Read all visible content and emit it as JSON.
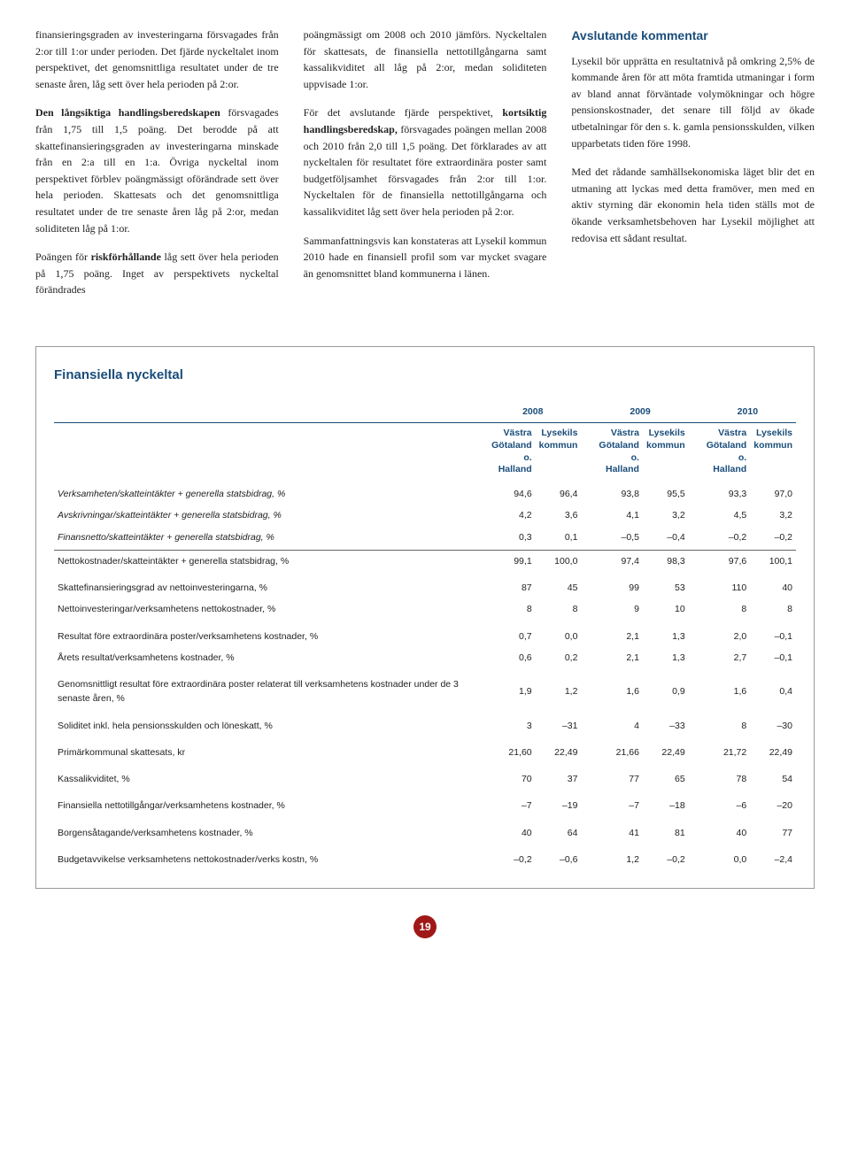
{
  "col1": {
    "p1": "finansieringsgraden av investeringarna försvagades från 2:or till 1:or under perioden. Det fjärde nyckeltalet inom perspektivet, det genomsnittliga resultatet under de tre senaste åren, låg sett över hela perioden på 2:or.",
    "p2a": "Den långsiktiga handlingsberedskapen",
    "p2b": " försvagades från 1,75 till 1,5 poäng. Det berodde på att skattefinansieringsgraden av investeringarna minskade från en 2:a till en 1:a. Övriga nyckeltal inom perspektivet förblev poängmässigt oförändrade sett över hela perioden. Skattesats och det genomsnittliga resultatet under de tre senaste åren låg på 2:or, medan soliditeten låg på 1:or.",
    "p3a": "Poängen för ",
    "p3b": "riskförhållande",
    "p3c": " låg sett över hela perioden på 1,75 poäng. Inget av perspektivets nyckeltal förändrades"
  },
  "col2": {
    "p1": "poängmässigt om 2008 och 2010 jämförs. Nyckeltalen för skattesats, de finansiella nettotillgångarna samt kassalikviditet all låg på 2:or, medan soliditeten uppvisade 1:or.",
    "p2a": "För det avslutande fjärde perspektivet, ",
    "p2b": "kortsiktig handlingsberedskap,",
    "p2c": " försvagades poängen mellan 2008 och 2010 från 2,0 till 1,5 poäng. Det förklarades av att nyckeltalen för resultatet före extraordinära poster samt budgetföljsamhet försvagades från 2:or till 1:or. Nyckeltalen för de finansiella nettotillgångarna och kassalikviditet låg sett över hela perioden på 2:or.",
    "p3": "Sammanfattningsvis kan konstateras att Lysekil kommun 2010 hade en finansiell profil som var mycket svagare än genomsnittet bland kommunerna i länen."
  },
  "col3": {
    "heading": "Avslutande kommentar",
    "p1": "Lysekil bör upprätta en resultatnivå på omkring 2,5% de kommande åren för att möta framtida utmaningar i form av bland annat förväntade volymökningar och högre pensionskostnader, det senare till följd av ökade utbetalningar för den s. k. gamla pensionsskulden, vilken upparbetats tiden före 1998.",
    "p2": "Med det rådande samhällsekonomiska läget blir det en utmaning att lyckas med detta framöver, men med en aktiv styrning där ekonomin hela tiden ställs mot de ökande verksamhetsbehoven har Lysekil möjlighet att redovisa ett sådant resultat."
  },
  "table": {
    "title": "Finansiella nyckeltal",
    "years": [
      "2008",
      "2009",
      "2010"
    ],
    "subA": "Västra Götaland o. Halland",
    "subB": "Lysekils kommun",
    "rows": [
      {
        "l": "Verksamheten/skatteintäkter + generella statsbidrag, %",
        "v": [
          "94,6",
          "96,4",
          "93,8",
          "95,5",
          "93,3",
          "97,0"
        ],
        "it": true
      },
      {
        "l": "Avskrivningar/skatteintäkter + generella statsbidrag, %",
        "v": [
          "4,2",
          "3,6",
          "4,1",
          "3,2",
          "4,5",
          "3,2"
        ],
        "it": true
      },
      {
        "l": "Finansnetto/skatteintäkter + generella statsbidrag, %",
        "v": [
          "0,3",
          "0,1",
          "–0,5",
          "–0,4",
          "–0,2",
          "–0,2"
        ],
        "it": true,
        "bline": true
      },
      {
        "l": "Nettokostnader/skatteintäkter + generella statsbidrag, %",
        "v": [
          "99,1",
          "100,0",
          "97,4",
          "98,3",
          "97,6",
          "100,1"
        ]
      },
      {
        "l": "Skattefinansieringsgrad av nettoinvesteringarna, %",
        "v": [
          "87",
          "45",
          "99",
          "53",
          "110",
          "40"
        ],
        "gap": true
      },
      {
        "l": "Nettoinvesteringar/verksamhetens nettokostnader, %",
        "v": [
          "8",
          "8",
          "9",
          "10",
          "8",
          "8"
        ]
      },
      {
        "l": "Resultat före extraordinära poster/verksamhetens kostnader, %",
        "v": [
          "0,7",
          "0,0",
          "2,1",
          "1,3",
          "2,0",
          "–0,1"
        ],
        "gap": true
      },
      {
        "l": "Årets resultat/verksamhetens kostnader, %",
        "v": [
          "0,6",
          "0,2",
          "2,1",
          "1,3",
          "2,7",
          "–0,1"
        ]
      },
      {
        "l": "Genomsnittligt resultat före extraordinära poster relaterat till verksamhetens kostnader under de 3 senaste åren, %",
        "v": [
          "1,9",
          "1,2",
          "1,6",
          "0,9",
          "1,6",
          "0,4"
        ],
        "gap": true
      },
      {
        "l": "Soliditet inkl. hela pensionsskulden och löneskatt, %",
        "v": [
          "3",
          "–31",
          "4",
          "–33",
          "8",
          "–30"
        ],
        "gap": true
      },
      {
        "l": "Primärkommunal skattesats, kr",
        "v": [
          "21,60",
          "22,49",
          "21,66",
          "22,49",
          "21,72",
          "22,49"
        ],
        "gap": true
      },
      {
        "l": "Kassalikviditet, %",
        "v": [
          "70",
          "37",
          "77",
          "65",
          "78",
          "54"
        ],
        "gap": true
      },
      {
        "l": "Finansiella nettotillgångar/verksamhetens kostnader, %",
        "v": [
          "–7",
          "–19",
          "–7",
          "–18",
          "–6",
          "–20"
        ],
        "gap": true
      },
      {
        "l": "Borgensåtagande/verksamhetens kostnader, %",
        "v": [
          "40",
          "64",
          "41",
          "81",
          "40",
          "77"
        ],
        "gap": true
      },
      {
        "l": "Budgetavvikelse verksamhetens nettokostnader/verks kostn, %",
        "v": [
          "–0,2",
          "–0,6",
          "1,2",
          "–0,2",
          "0,0",
          "–2,4"
        ],
        "gap": true
      }
    ]
  },
  "pagenum": "19"
}
